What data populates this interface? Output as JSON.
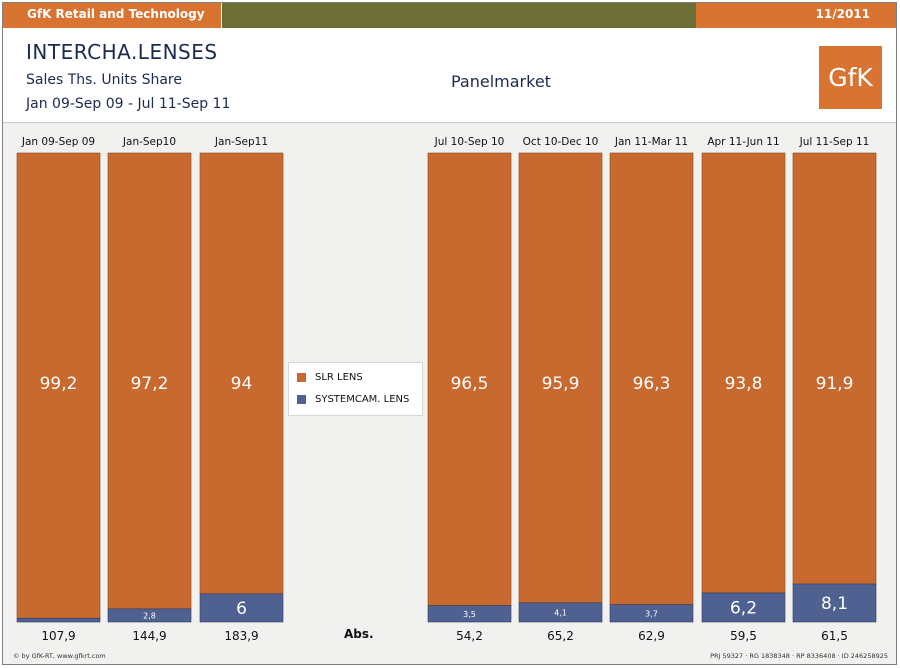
{
  "header": {
    "company": "GfK Retail and Technology",
    "date": "11/2011",
    "colors": {
      "orange": "#d87331",
      "olive": "#6b6f36"
    }
  },
  "title": "INTERCHA.LENSES",
  "subtitle": "Sales Ths. Units Share",
  "period": "Jan 09-Sep 09 - Jul 11-Sep 11",
  "market": "Panelmarket",
  "logo_text": "GfK",
  "abs_label": "Abs.",
  "footer": {
    "copyright": "© by GfK-RT, www.gfkrt.com",
    "codes": "PRJ 59327 · RG 1838348 · RP 8336408 · ID 246258925"
  },
  "chart_data": {
    "type": "bar",
    "stacked": true,
    "percent": true,
    "ylim": [
      0,
      100
    ],
    "categories": [
      "Jan 09-Sep 09",
      "Jan-Sep10",
      "Jan-Sep11",
      "Jul 10-Sep 10",
      "Oct 10-Dec 10",
      "Jan 11-Mar 11",
      "Apr 11-Jun 11",
      "Jul 11-Sep 11"
    ],
    "series": [
      {
        "name": "SLR LENS",
        "color": "#c8692f",
        "values": [
          99.2,
          97.2,
          94.0,
          96.5,
          95.9,
          96.3,
          93.8,
          91.9
        ],
        "labels": [
          "99,2",
          "97,2",
          "94",
          "96,5",
          "95,9",
          "96,3",
          "93,8",
          "91,9"
        ]
      },
      {
        "name": "SYSTEMCAM. LENS",
        "color": "#4f6191",
        "values": [
          0.8,
          2.8,
          6.0,
          3.5,
          4.1,
          3.7,
          6.2,
          8.1
        ],
        "labels": [
          "",
          "2,8",
          "6",
          "3,5",
          "4,1",
          "3,7",
          "6,2",
          "8,1"
        ]
      }
    ],
    "absolute": [
      "107,9",
      "144,9",
      "183,9",
      "54,2",
      "65,2",
      "62,9",
      "59,5",
      "61,5"
    ],
    "legend_position": "center"
  }
}
